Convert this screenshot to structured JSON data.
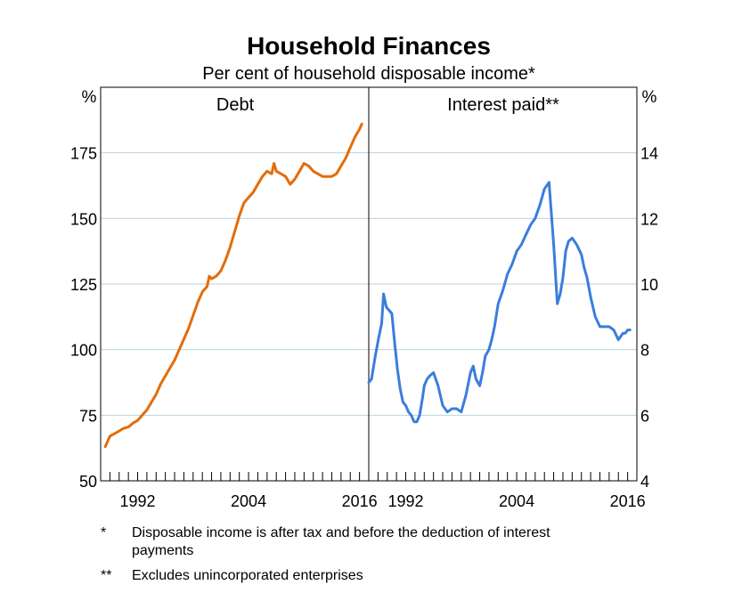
{
  "chart_data": {
    "type": "line",
    "title": "Household Finances",
    "subtitle": "Per cent of household disposable income*",
    "panels": [
      {
        "title": "Debt",
        "unit_label": "%",
        "y_axis_side": "left",
        "ylim": [
          50,
          200
        ],
        "yticks": [
          50,
          75,
          100,
          125,
          150,
          175
        ],
        "xlim": [
          1988,
          2017
        ],
        "xticks": [
          1992,
          2004,
          2016
        ],
        "grid": true,
        "series": [
          {
            "color": "#e36c0a",
            "x": [
              1988.5,
              1989.0,
              1989.5,
              1990.0,
              1990.5,
              1991.0,
              1991.5,
              1992.0,
              1992.5,
              1993.0,
              1993.5,
              1994.0,
              1994.5,
              1995.0,
              1995.5,
              1996.0,
              1996.5,
              1997.0,
              1997.5,
              1998.0,
              1998.5,
              1999.0,
              1999.5,
              1999.75,
              2000.0,
              2000.5,
              2001.0,
              2001.5,
              2002.0,
              2002.5,
              2003.0,
              2003.5,
              2004.0,
              2004.5,
              2005.0,
              2005.5,
              2006.0,
              2006.5,
              2006.75,
              2007.0,
              2007.5,
              2008.0,
              2008.5,
              2009.0,
              2009.5,
              2010.0,
              2010.5,
              2011.0,
              2011.5,
              2012.0,
              2012.5,
              2013.0,
              2013.5,
              2014.0,
              2014.5,
              2015.0,
              2015.5,
              2016.0,
              2016.25
            ],
            "values": [
              63,
              67,
              68,
              69,
              70,
              70.5,
              72,
              73,
              75,
              77,
              80,
              83,
              87,
              90,
              93,
              96,
              100,
              104,
              108,
              113,
              118,
              122,
              124,
              128,
              127,
              128,
              130,
              134,
              139,
              145,
              151,
              156,
              158,
              160,
              163,
              166,
              168,
              167,
              171,
              168,
              167,
              166,
              163,
              165,
              168,
              171,
              170,
              168,
              167,
              166,
              166,
              166,
              167,
              170,
              173,
              177,
              181,
              184,
              186
            ]
          }
        ]
      },
      {
        "title": "Interest paid**",
        "unit_label": "%",
        "y_axis_side": "right",
        "ylim": [
          4,
          16
        ],
        "yticks": [
          4,
          6,
          8,
          10,
          12,
          14
        ],
        "xlim": [
          1988,
          2017
        ],
        "xticks": [
          1992,
          2004,
          2016
        ],
        "grid": true,
        "series": [
          {
            "color": "#3b7ddd",
            "x": [
              1988.0,
              1988.3,
              1988.7,
              1989.1,
              1989.4,
              1989.6,
              1989.9,
              1990.2,
              1990.5,
              1990.8,
              1991.1,
              1991.4,
              1991.7,
              1992.0,
              1992.3,
              1992.6,
              1992.9,
              1993.2,
              1993.5,
              1993.8,
              1994.0,
              1994.3,
              1994.6,
              1995.0,
              1995.5,
              1996.0,
              1996.5,
              1997.0,
              1997.5,
              1998.0,
              1998.5,
              1999.0,
              1999.3,
              1999.6,
              2000.0,
              2000.3,
              2000.6,
              2001.0,
              2001.3,
              2001.6,
              2002.0,
              2002.5,
              2003.0,
              2003.5,
              2004.0,
              2004.5,
              2005.0,
              2005.5,
              2006.0,
              2006.5,
              2007.0,
              2007.5,
              2008.0,
              2008.4,
              2008.7,
              2009.0,
              2009.3,
              2009.6,
              2010.0,
              2010.5,
              2011.0,
              2011.3,
              2011.6,
              2012.0,
              2012.5,
              2013.0,
              2013.5,
              2014.0,
              2014.5,
              2015.0,
              2015.25,
              2015.5,
              2015.75,
              2016.0,
              2016.25
            ],
            "values": [
              7.0,
              7.1,
              7.8,
              8.4,
              8.8,
              9.7,
              9.3,
              9.2,
              9.1,
              8.2,
              7.4,
              6.8,
              6.4,
              6.3,
              6.1,
              6.0,
              5.8,
              5.8,
              6.0,
              6.5,
              6.9,
              7.1,
              7.2,
              7.3,
              6.9,
              6.3,
              6.1,
              6.2,
              6.2,
              6.1,
              6.6,
              7.3,
              7.5,
              7.1,
              6.9,
              7.3,
              7.8,
              8.0,
              8.3,
              8.7,
              9.4,
              9.8,
              10.3,
              10.6,
              11.0,
              11.2,
              11.5,
              11.8,
              12.0,
              12.4,
              12.9,
              13.1,
              11.2,
              9.4,
              9.7,
              10.2,
              11.0,
              11.3,
              11.4,
              11.2,
              10.9,
              10.5,
              10.2,
              9.6,
              9.0,
              8.7,
              8.7,
              8.7,
              8.6,
              8.3,
              8.4,
              8.5,
              8.5,
              8.6,
              8.6
            ]
          }
        ]
      }
    ],
    "footnotes": [
      {
        "marker": "*",
        "text": "Disposable income is after tax and before the deduction of interest payments"
      },
      {
        "marker": "**",
        "text": "Excludes unincorporated enterprises"
      }
    ]
  }
}
